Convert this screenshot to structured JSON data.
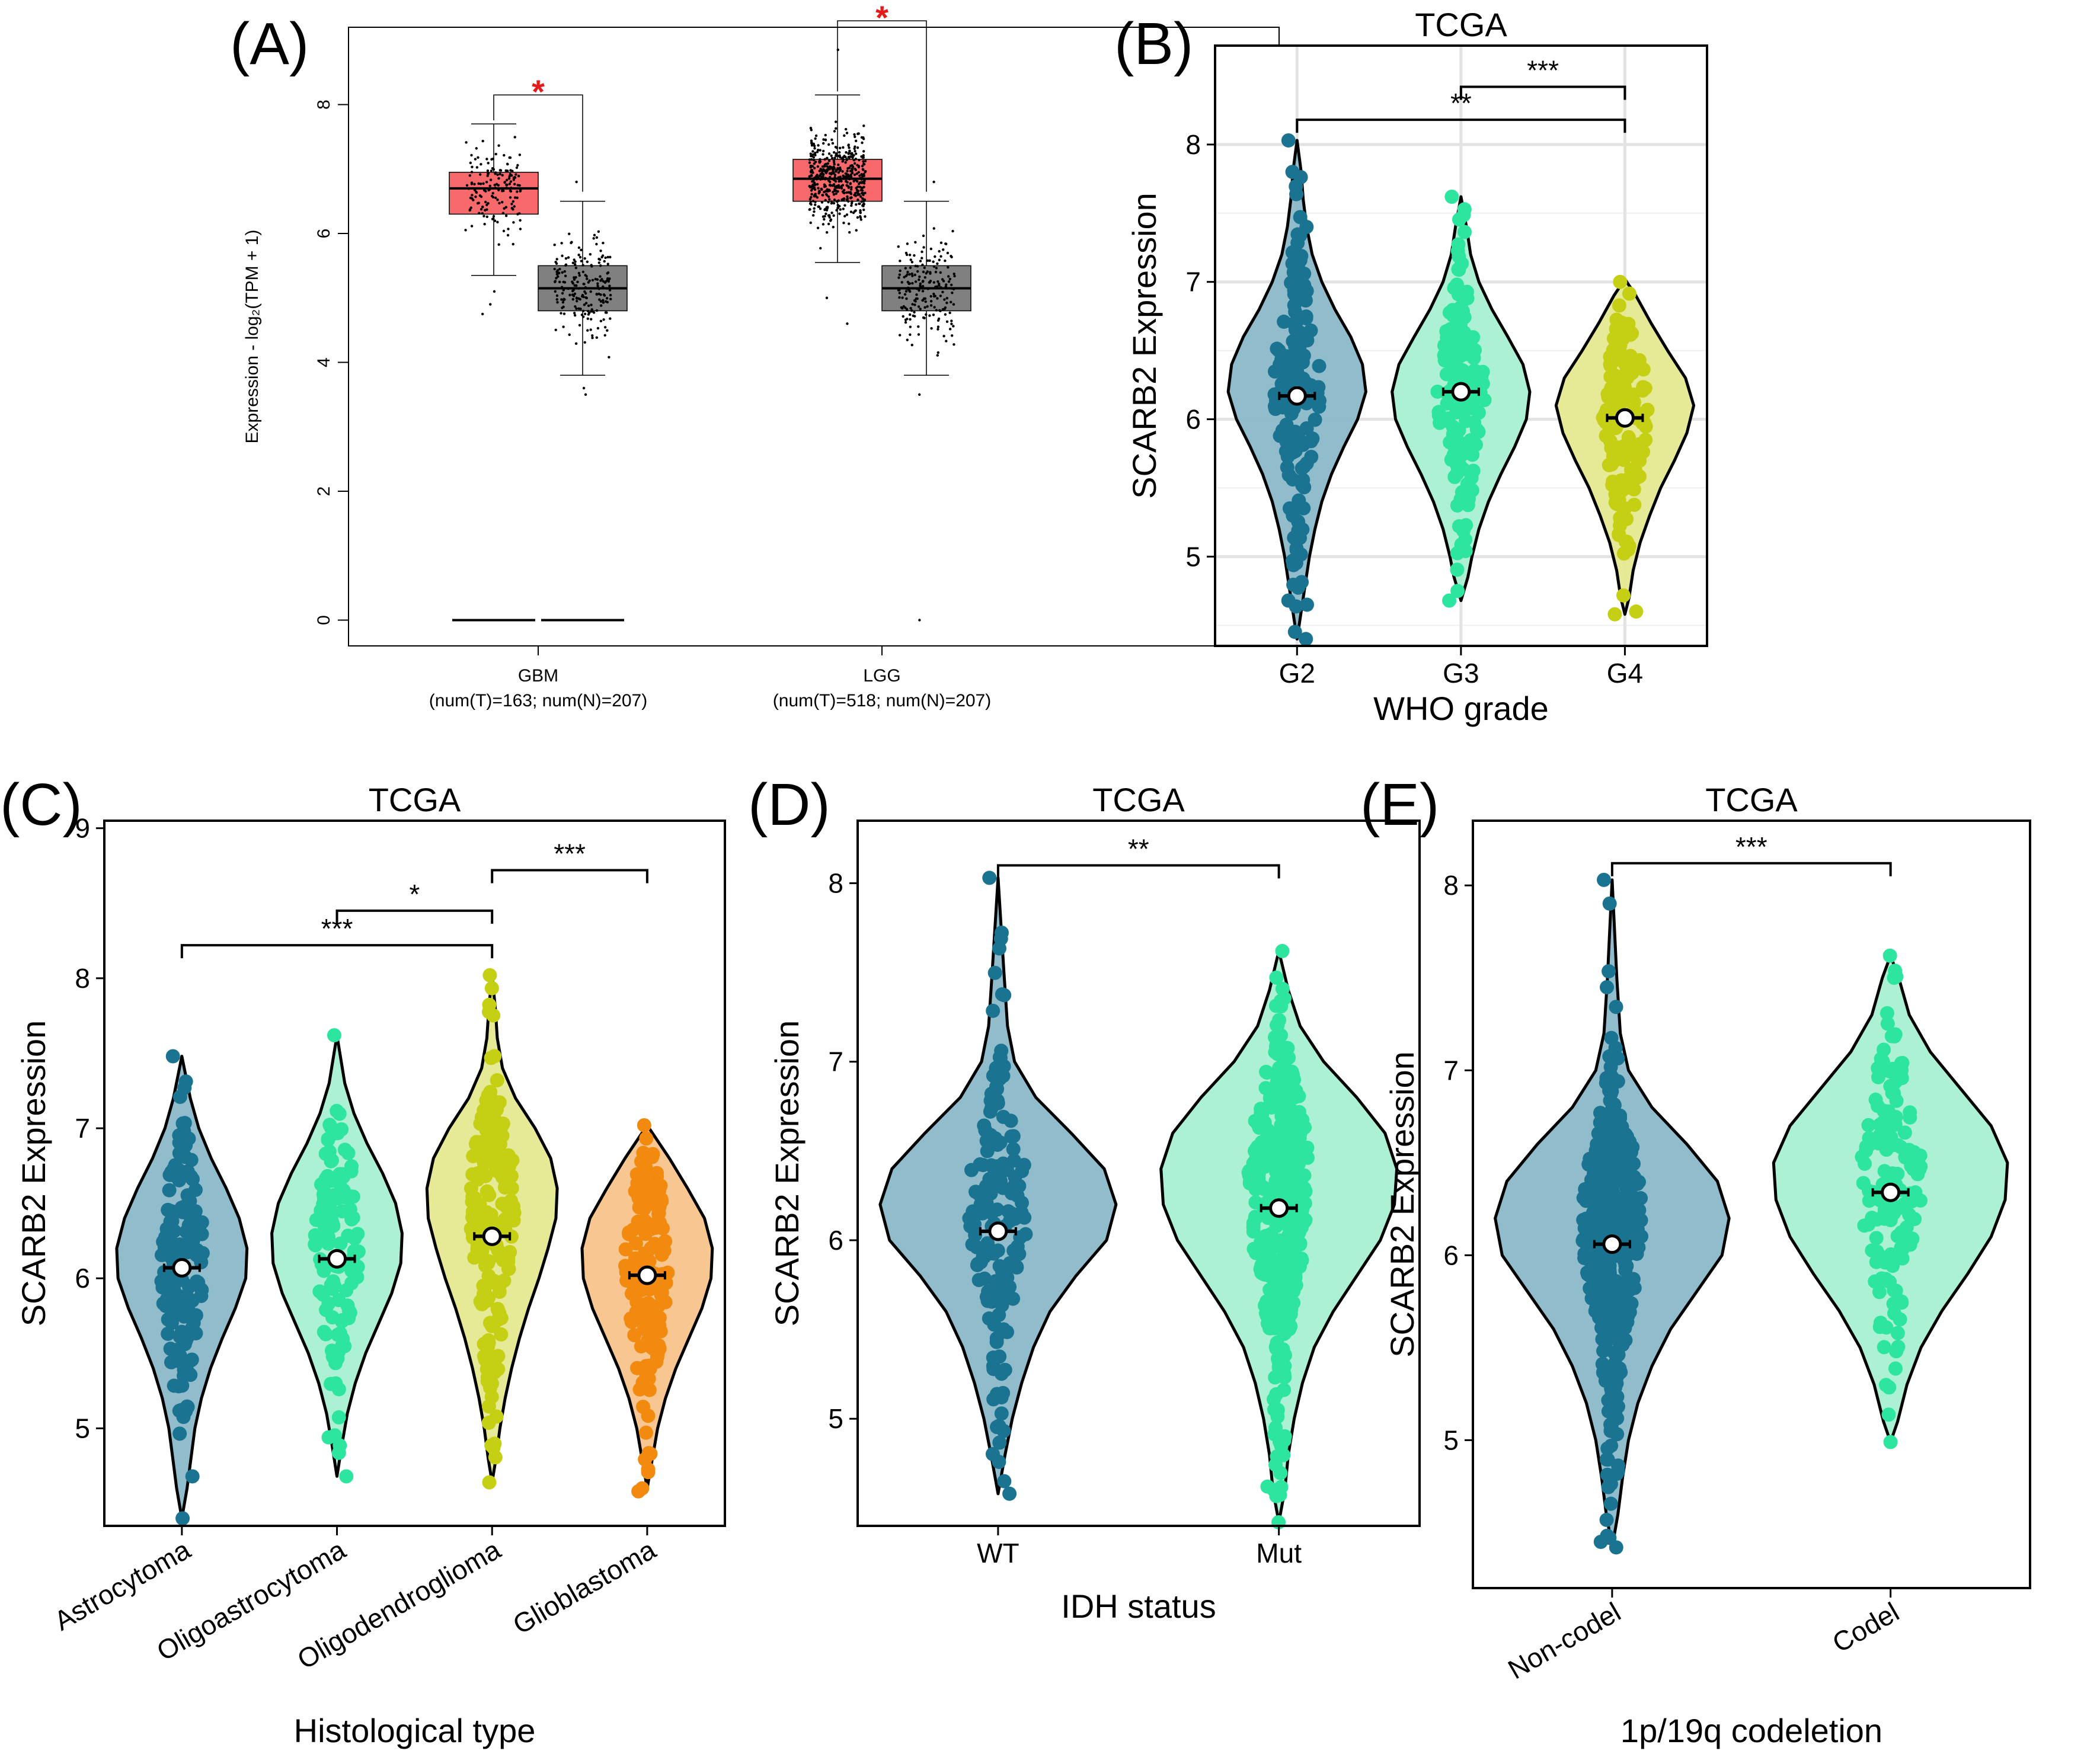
{
  "chart_data": [
    {
      "id": "A",
      "panel_label": "(A)",
      "type": "box",
      "title": "",
      "xlabel": "",
      "ylabel": "Expression - log₂(TPM + 1)",
      "ylim": [
        -0.4,
        9.2
      ],
      "yticks": [
        0,
        2,
        4,
        6,
        8
      ],
      "categories": [
        {
          "name": "GBM",
          "sub": "(num(T)=163; num(N)=207)"
        },
        {
          "name": "LGG",
          "sub": "(num(T)=518; num(N)=207)"
        }
      ],
      "boxes": [
        {
          "cat": "GBM",
          "group": "T",
          "color": "#f8696b",
          "min": 5.35,
          "q1": 6.3,
          "median": 6.7,
          "q3": 6.95,
          "max": 7.7,
          "n": 163,
          "outliers": [
            4.9,
            4.75,
            5.1
          ]
        },
        {
          "cat": "GBM",
          "group": "N",
          "color": "#808080",
          "min": 3.8,
          "q1": 4.8,
          "median": 5.15,
          "q3": 5.5,
          "max": 6.5,
          "n": 207,
          "outliers": [
            3.5,
            6.8,
            3.6
          ]
        },
        {
          "cat": "LGG",
          "group": "T",
          "color": "#f8696b",
          "min": 5.55,
          "q1": 6.5,
          "median": 6.85,
          "q3": 7.15,
          "max": 8.15,
          "n": 518,
          "outliers": [
            4.6,
            8.85,
            5.0
          ]
        },
        {
          "cat": "LGG",
          "group": "N",
          "color": "#808080",
          "min": 3.8,
          "q1": 4.8,
          "median": 5.15,
          "q3": 5.5,
          "max": 6.5,
          "n": 207,
          "outliers": [
            3.5,
            6.8,
            0.0
          ]
        }
      ],
      "zero_lines": [
        {
          "cat": "GBM",
          "group": "T",
          "value": 0
        },
        {
          "cat": "GBM",
          "group": "N",
          "value": 0
        }
      ],
      "significance": [
        {
          "cat": "GBM",
          "label": "*",
          "y": 8.15
        },
        {
          "cat": "LGG",
          "label": "*",
          "y": 9.3
        }
      ]
    },
    {
      "id": "B",
      "panel_label": "(B)",
      "type": "violin",
      "title": "TCGA",
      "xlabel": "WHO grade",
      "ylabel": "SCARB2 Expression",
      "ylim": [
        4.35,
        8.72
      ],
      "yticks": [
        5,
        6,
        7,
        8
      ],
      "minor_grid": [
        4.5,
        5.5,
        6.5,
        7.5
      ],
      "groups": [
        {
          "name": "G2",
          "color": "#1a7390",
          "fill": "#8bb8c9",
          "mean": 6.17,
          "min": 4.4,
          "max": 8.03,
          "n": 150,
          "shape": [
            [
              4.4,
              0
            ],
            [
              4.6,
              0.06
            ],
            [
              4.8,
              0.12
            ],
            [
              5.0,
              0.18
            ],
            [
              5.2,
              0.26
            ],
            [
              5.4,
              0.36
            ],
            [
              5.6,
              0.5
            ],
            [
              5.8,
              0.68
            ],
            [
              6.0,
              0.88
            ],
            [
              6.2,
              1.0
            ],
            [
              6.4,
              0.95
            ],
            [
              6.6,
              0.78
            ],
            [
              6.8,
              0.55
            ],
            [
              7.0,
              0.36
            ],
            [
              7.2,
              0.22
            ],
            [
              7.4,
              0.14
            ],
            [
              7.6,
              0.09
            ],
            [
              7.8,
              0.06
            ],
            [
              8.03,
              0
            ]
          ],
          "outliers": [
            4.4,
            4.65,
            4.68,
            8.03,
            7.4
          ]
        },
        {
          "name": "G3",
          "color": "#2ee5a0",
          "fill": "#a8f0d2",
          "mean": 6.2,
          "min": 4.68,
          "max": 7.62,
          "n": 150,
          "shape": [
            [
              4.68,
              0
            ],
            [
              4.85,
              0.1
            ],
            [
              5.0,
              0.16
            ],
            [
              5.2,
              0.26
            ],
            [
              5.4,
              0.4
            ],
            [
              5.6,
              0.58
            ],
            [
              5.8,
              0.78
            ],
            [
              6.0,
              0.95
            ],
            [
              6.2,
              1.0
            ],
            [
              6.4,
              0.9
            ],
            [
              6.6,
              0.68
            ],
            [
              6.8,
              0.45
            ],
            [
              7.0,
              0.26
            ],
            [
              7.2,
              0.14
            ],
            [
              7.4,
              0.08
            ],
            [
              7.62,
              0
            ]
          ],
          "outliers": [
            4.68,
            4.75,
            7.62
          ]
        },
        {
          "name": "G4",
          "color": "#c5cf14",
          "fill": "#e5e88f",
          "mean": 6.01,
          "min": 4.58,
          "max": 7.02,
          "n": 150,
          "shape": [
            [
              4.58,
              0
            ],
            [
              4.7,
              0.06
            ],
            [
              4.9,
              0.12
            ],
            [
              5.1,
              0.22
            ],
            [
              5.3,
              0.36
            ],
            [
              5.5,
              0.52
            ],
            [
              5.7,
              0.72
            ],
            [
              5.9,
              0.9
            ],
            [
              6.1,
              1.0
            ],
            [
              6.3,
              0.88
            ],
            [
              6.5,
              0.62
            ],
            [
              6.7,
              0.38
            ],
            [
              6.9,
              0.16
            ],
            [
              7.02,
              0
            ]
          ],
          "outliers": [
            4.58,
            4.6,
            7.0
          ]
        }
      ],
      "comparisons": [
        {
          "from": "G2",
          "to": "G4",
          "label": "**",
          "y": 8.18
        },
        {
          "from": "G3",
          "to": "G4",
          "label": "***",
          "y": 8.42
        }
      ]
    },
    {
      "id": "C",
      "panel_label": "(C)",
      "type": "violin",
      "title": "TCGA",
      "xlabel": "Histological type",
      "ylabel": "SCARB2 Expression",
      "ylim": [
        4.35,
        9.05
      ],
      "yticks": [
        5,
        6,
        7,
        8,
        9
      ],
      "groups": [
        {
          "name": "Astrocytoma",
          "color": "#1a7390",
          "fill": "#8bb8c9",
          "mean": 6.07,
          "min": 4.4,
          "max": 7.48,
          "n": 150,
          "shape": [
            [
              4.4,
              0
            ],
            [
              4.6,
              0.08
            ],
            [
              4.8,
              0.14
            ],
            [
              5.0,
              0.2
            ],
            [
              5.2,
              0.3
            ],
            [
              5.4,
              0.44
            ],
            [
              5.6,
              0.62
            ],
            [
              5.8,
              0.82
            ],
            [
              6.0,
              0.98
            ],
            [
              6.2,
              1.0
            ],
            [
              6.4,
              0.88
            ],
            [
              6.6,
              0.68
            ],
            [
              6.8,
              0.45
            ],
            [
              7.0,
              0.26
            ],
            [
              7.2,
              0.13
            ],
            [
              7.48,
              0
            ]
          ],
          "outliers": [
            4.4,
            4.68,
            7.48
          ]
        },
        {
          "name": "Oligoastrocytoma",
          "color": "#2ee5a0",
          "fill": "#a8f0d2",
          "mean": 6.13,
          "min": 4.68,
          "max": 7.62,
          "n": 120,
          "shape": [
            [
              4.68,
              0
            ],
            [
              4.9,
              0.08
            ],
            [
              5.1,
              0.16
            ],
            [
              5.3,
              0.28
            ],
            [
              5.5,
              0.44
            ],
            [
              5.7,
              0.64
            ],
            [
              5.9,
              0.84
            ],
            [
              6.1,
              0.98
            ],
            [
              6.3,
              1.0
            ],
            [
              6.5,
              0.9
            ],
            [
              6.7,
              0.7
            ],
            [
              6.9,
              0.46
            ],
            [
              7.1,
              0.26
            ],
            [
              7.3,
              0.12
            ],
            [
              7.62,
              0
            ]
          ],
          "outliers": [
            4.68,
            4.94,
            7.62
          ]
        },
        {
          "name": "Oligodendroglioma",
          "color": "#c5cf14",
          "fill": "#e5e88f",
          "mean": 6.28,
          "min": 4.64,
          "max": 8.02,
          "n": 180,
          "shape": [
            [
              4.64,
              0
            ],
            [
              4.8,
              0.06
            ],
            [
              5.0,
              0.12
            ],
            [
              5.2,
              0.2
            ],
            [
              5.4,
              0.3
            ],
            [
              5.6,
              0.42
            ],
            [
              5.8,
              0.56
            ],
            [
              6.0,
              0.72
            ],
            [
              6.2,
              0.86
            ],
            [
              6.4,
              0.98
            ],
            [
              6.6,
              1.0
            ],
            [
              6.8,
              0.9
            ],
            [
              7.0,
              0.66
            ],
            [
              7.2,
              0.36
            ],
            [
              7.4,
              0.16
            ],
            [
              7.6,
              0.08
            ],
            [
              7.8,
              0.05
            ],
            [
              8.02,
              0
            ]
          ],
          "outliers": [
            4.64,
            8.02
          ]
        },
        {
          "name": "Glioblastoma",
          "color": "#f28a10",
          "fill": "#f8c48b",
          "mean": 6.02,
          "min": 4.6,
          "max": 7.02,
          "n": 150,
          "shape": [
            [
              4.6,
              0
            ],
            [
              4.8,
              0.08
            ],
            [
              5.0,
              0.16
            ],
            [
              5.2,
              0.28
            ],
            [
              5.4,
              0.44
            ],
            [
              5.6,
              0.64
            ],
            [
              5.8,
              0.84
            ],
            [
              6.0,
              0.98
            ],
            [
              6.2,
              1.0
            ],
            [
              6.4,
              0.88
            ],
            [
              6.6,
              0.62
            ],
            [
              6.8,
              0.34
            ],
            [
              7.02,
              0
            ]
          ],
          "outliers": [
            4.6,
            4.58,
            7.02
          ]
        }
      ],
      "comparisons": [
        {
          "from": "Astrocytoma",
          "to": "Oligodendroglioma",
          "label": "***",
          "y": 8.22
        },
        {
          "from": "Oligoastrocytoma",
          "to": "Oligodendroglioma",
          "label": "*",
          "y": 8.45
        },
        {
          "from": "Oligodendroglioma",
          "to": "Glioblastoma",
          "label": "***",
          "y": 8.72
        }
      ]
    },
    {
      "id": "D",
      "panel_label": "(D)",
      "type": "violin",
      "title": "TCGA",
      "xlabel": "IDH status",
      "ylabel": "SCARB2 Expression",
      "ylim": [
        4.4,
        8.35
      ],
      "yticks": [
        5,
        6,
        7,
        8
      ],
      "groups": [
        {
          "name": "WT",
          "color": "#1a7390",
          "fill": "#8bb8c9",
          "mean": 6.05,
          "min": 4.58,
          "max": 8.03,
          "n": 170,
          "shape": [
            [
              4.58,
              0
            ],
            [
              4.8,
              0.06
            ],
            [
              5.0,
              0.12
            ],
            [
              5.2,
              0.2
            ],
            [
              5.4,
              0.3
            ],
            [
              5.6,
              0.44
            ],
            [
              5.8,
              0.66
            ],
            [
              6.0,
              0.92
            ],
            [
              6.2,
              1.0
            ],
            [
              6.4,
              0.9
            ],
            [
              6.6,
              0.62
            ],
            [
              6.8,
              0.32
            ],
            [
              7.0,
              0.14
            ],
            [
              7.2,
              0.08
            ],
            [
              7.5,
              0.05
            ],
            [
              8.03,
              0
            ]
          ],
          "outliers": [
            4.58,
            4.65,
            8.03
          ]
        },
        {
          "name": "Mut",
          "color": "#2ee5a0",
          "fill": "#a8f0d2",
          "mean": 6.18,
          "min": 4.42,
          "max": 7.62,
          "n": 420,
          "shape": [
            [
              4.42,
              0
            ],
            [
              4.6,
              0.05
            ],
            [
              4.8,
              0.08
            ],
            [
              5.0,
              0.13
            ],
            [
              5.2,
              0.2
            ],
            [
              5.4,
              0.3
            ],
            [
              5.6,
              0.46
            ],
            [
              5.8,
              0.66
            ],
            [
              6.0,
              0.86
            ],
            [
              6.2,
              0.98
            ],
            [
              6.4,
              1.0
            ],
            [
              6.6,
              0.9
            ],
            [
              6.8,
              0.66
            ],
            [
              7.0,
              0.38
            ],
            [
              7.2,
              0.18
            ],
            [
              7.4,
              0.08
            ],
            [
              7.62,
              0
            ]
          ],
          "outliers": [
            4.42,
            4.62,
            7.62
          ]
        }
      ],
      "comparisons": [
        {
          "from": "WT",
          "to": "Mut",
          "label": "**",
          "y": 8.1
        }
      ]
    },
    {
      "id": "E",
      "panel_label": "(E)",
      "type": "violin",
      "title": "TCGA",
      "xlabel": "1p/19q codeletion",
      "ylabel": "SCARB2 Expression",
      "ylim": [
        4.2,
        8.35
      ],
      "yticks": [
        5,
        6,
        7,
        8
      ],
      "groups": [
        {
          "name": "Non-codel",
          "color": "#1a7390",
          "fill": "#8bb8c9",
          "mean": 6.06,
          "min": 4.42,
          "max": 8.03,
          "n": 420,
          "shape": [
            [
              4.42,
              0
            ],
            [
              4.6,
              0.05
            ],
            [
              4.8,
              0.09
            ],
            [
              5.0,
              0.14
            ],
            [
              5.2,
              0.22
            ],
            [
              5.4,
              0.34
            ],
            [
              5.6,
              0.5
            ],
            [
              5.8,
              0.72
            ],
            [
              6.0,
              0.94
            ],
            [
              6.2,
              1.0
            ],
            [
              6.4,
              0.9
            ],
            [
              6.6,
              0.64
            ],
            [
              6.8,
              0.34
            ],
            [
              7.0,
              0.14
            ],
            [
              7.2,
              0.07
            ],
            [
              7.5,
              0.04
            ],
            [
              8.03,
              0
            ]
          ],
          "outliers": [
            4.42,
            4.45,
            8.03
          ]
        },
        {
          "name": "Codel",
          "color": "#2ee5a0",
          "fill": "#a8f0d2",
          "mean": 6.34,
          "min": 4.99,
          "max": 7.62,
          "n": 150,
          "shape": [
            [
              4.99,
              0
            ],
            [
              5.1,
              0.06
            ],
            [
              5.3,
              0.14
            ],
            [
              5.5,
              0.26
            ],
            [
              5.7,
              0.44
            ],
            [
              5.9,
              0.66
            ],
            [
              6.1,
              0.86
            ],
            [
              6.3,
              0.98
            ],
            [
              6.5,
              1.0
            ],
            [
              6.7,
              0.86
            ],
            [
              6.9,
              0.6
            ],
            [
              7.1,
              0.34
            ],
            [
              7.3,
              0.16
            ],
            [
              7.5,
              0.07
            ],
            [
              7.62,
              0
            ]
          ],
          "outliers": [
            4.99,
            7.62
          ]
        }
      ],
      "comparisons": [
        {
          "from": "Non-codel",
          "to": "Codel",
          "label": "***",
          "y": 8.12
        }
      ]
    }
  ]
}
